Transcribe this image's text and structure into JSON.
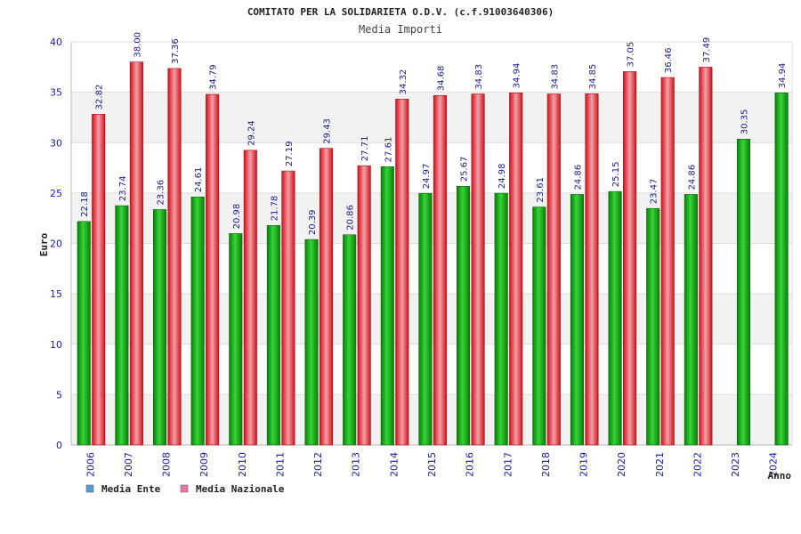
{
  "chart_data": {
    "type": "bar",
    "title": "COMITATO PER LA SOLIDARIETA O.D.V. (c.f.91003640306)",
    "subtitle": "Media Importi",
    "xlabel": "Anno",
    "ylabel": "Euro",
    "ylim": [
      0,
      40
    ],
    "yticks": [
      0,
      5,
      10,
      15,
      20,
      25,
      30,
      35,
      40
    ],
    "categories": [
      "2006",
      "2007",
      "2008",
      "2009",
      "2010",
      "2011",
      "2012",
      "2013",
      "2014",
      "2015",
      "2016",
      "2017",
      "2018",
      "2019",
      "2020",
      "2021",
      "2022",
      "2023",
      "2024"
    ],
    "series": [
      {
        "name": "Media Ente",
        "color": "#1fae1f",
        "legend_color": "#5b9bd5",
        "values": [
          22.18,
          23.74,
          23.36,
          24.61,
          20.98,
          21.78,
          20.39,
          20.86,
          27.61,
          24.97,
          25.67,
          24.98,
          23.61,
          24.86,
          25.15,
          23.47,
          24.86,
          30.35,
          34.94
        ],
        "labels": [
          "22.18",
          "23.74",
          "23.36",
          "24.61",
          "20.98",
          "21.78",
          "20.39",
          "20.86",
          "27.61",
          "24.97",
          "25.67",
          "24.98",
          "23.61",
          "24.86",
          "25.15",
          "23.47",
          "24.86",
          "30.35",
          "34.94"
        ]
      },
      {
        "name": "Media Nazionale",
        "color": "#e8202a",
        "legend_color": "#e87aa6",
        "values": [
          32.82,
          38.0,
          37.36,
          34.79,
          29.24,
          27.19,
          29.43,
          27.71,
          34.32,
          34.68,
          34.83,
          34.94,
          34.83,
          34.85,
          37.05,
          36.46,
          37.49,
          null,
          null
        ],
        "labels": [
          "32.82",
          "38.00",
          "37.36",
          "34.79",
          "29.24",
          "27.19",
          "29.43",
          "27.71",
          "34.32",
          "34.68",
          "34.83",
          "34.94",
          "34.83",
          "34.85",
          "37.05",
          "36.46",
          "37.49",
          "",
          ""
        ]
      }
    ],
    "grid": true,
    "legend_position": "bottom-left"
  }
}
